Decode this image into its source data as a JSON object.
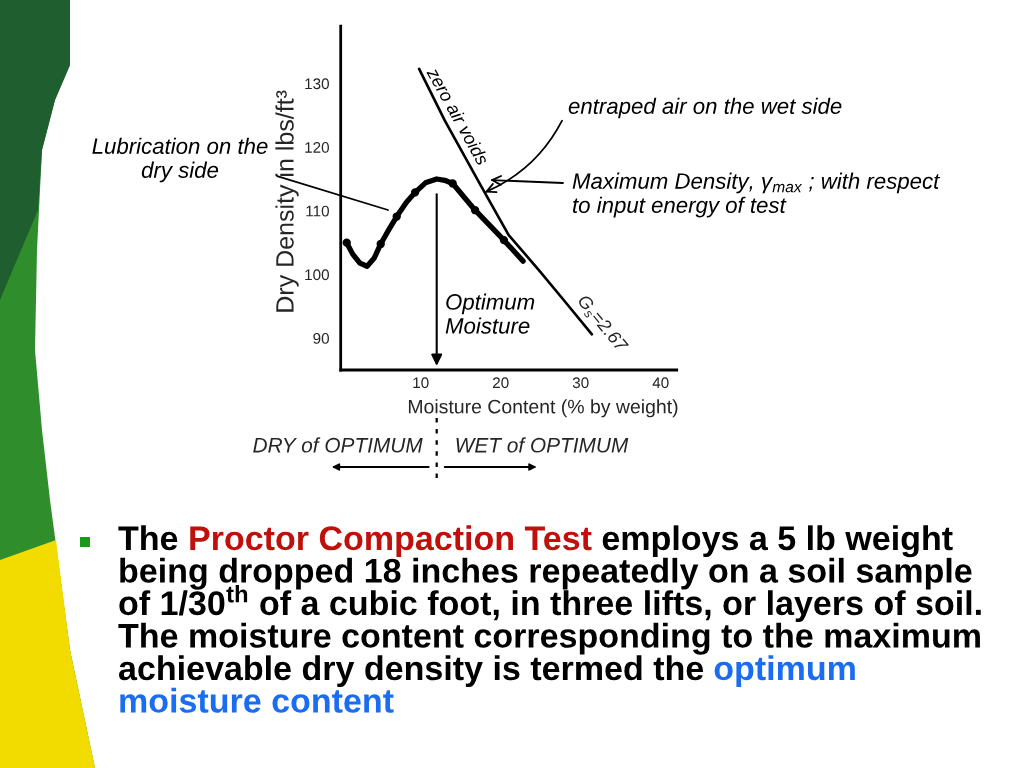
{
  "chart_data": {
    "type": "line",
    "xlabel": "Moisture Content (% by weight)",
    "ylabel": "Dry Density in lbs/ft³",
    "xlim": [
      0,
      42
    ],
    "ylim": [
      85,
      139
    ],
    "xticks": [
      10,
      20,
      30,
      40
    ],
    "yticks": [
      90,
      100,
      110,
      120,
      130
    ],
    "grid": false,
    "series": [
      {
        "color": "#000000",
        "x": [
          0.75,
          1.5,
          2.4,
          3.3,
          4.2,
          5.0,
          6.0,
          7.0,
          8.2,
          9.3,
          10.6,
          12.0,
          13.0,
          14.0,
          16.8,
          20.4,
          22.8
        ],
        "values": [
          105.0,
          103.2,
          101.8,
          101.3,
          102.6,
          104.8,
          107.0,
          109.1,
          111.3,
          112.9,
          114.4,
          115.0,
          114.8,
          114.3,
          110.1,
          105.4,
          102.1
        ]
      },
      {
        "type": "scatter",
        "color": "#000000",
        "marker": "circle",
        "x": [
          0.75,
          5.0,
          7.0,
          9.3,
          14.0,
          16.8,
          20.4
        ],
        "values": [
          105.0,
          104.8,
          109.1,
          112.9,
          114.3,
          110.1,
          105.4
        ]
      },
      {
        "name": "zero air voids",
        "color": "#000000",
        "x": [
          9.8,
          13.0,
          17.5,
          21.0,
          24.9,
          28.0,
          31.4
        ],
        "values": [
          132.3,
          124.2,
          114.0,
          106.2,
          100.5,
          95.8,
          90.6
        ]
      }
    ],
    "annotations": [
      "Lubrication on the\ndry side",
      {
        "text": "entraped air on the wet side",
        "x": 18.0,
        "y": 112.9
      },
      "Maximum Density, γ$_{max}$ ; with respect\nto input energy of test",
      "Optimum\nMoisture",
      "G$_{s}$=2.67",
      "DRY of OPTIMUM",
      "WET of OPTIMUM",
      "The",
      "Proctor Compaction Test",
      "employs a 5 lb weight",
      "being dropped 18 inches repeatedly on a soil sample",
      "of 1/30$^{th}$ of a cubic foot, in three lifts, or layers of soil.",
      "The moisture content corresponding to the maximum",
      "achievable dry density is termed the",
      "optimum",
      "moisture content"
    ]
  }
}
